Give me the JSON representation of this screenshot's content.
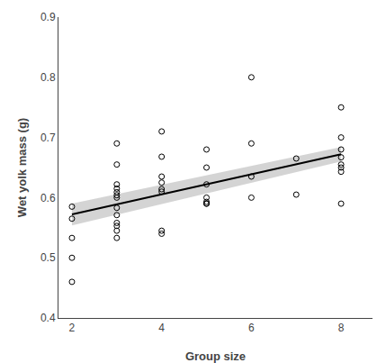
{
  "chart_data": {
    "type": "scatter",
    "xlabel": "Group size",
    "ylabel": "Wet yolk mass (g)",
    "xlim": [
      1.7,
      8.7
    ],
    "ylim": [
      0.4,
      0.9
    ],
    "xticks": [
      2,
      4,
      6,
      8
    ],
    "yticks": [
      0.4,
      0.5,
      0.6,
      0.7,
      0.8,
      0.9
    ],
    "grid": false,
    "series": [
      {
        "type": "band",
        "color": "#b0b0b0",
        "x": [
          2,
          8
        ],
        "lower": [
          0.554,
          0.66
        ],
        "upper": [
          0.59,
          0.684
        ]
      },
      {
        "type": "line",
        "color": "#000000",
        "x": [
          2,
          8
        ],
        "values": [
          0.572,
          0.672
        ]
      },
      {
        "type": "scatter",
        "color": "#000000",
        "marker": "circle-open",
        "x": [
          2,
          2,
          2,
          2,
          2,
          3,
          3,
          3,
          3,
          3,
          3,
          3,
          3,
          3,
          3,
          3,
          3,
          3,
          4,
          4,
          4,
          4,
          4,
          4,
          4,
          4,
          5,
          5,
          5,
          5,
          5,
          5,
          5,
          6,
          6,
          6,
          6,
          7,
          7,
          8,
          8,
          8,
          8,
          8,
          8,
          8,
          8
        ],
        "values": [
          0.585,
          0.565,
          0.533,
          0.5,
          0.46,
          0.69,
          0.655,
          0.622,
          0.615,
          0.609,
          0.604,
          0.6,
          0.583,
          0.571,
          0.558,
          0.553,
          0.545,
          0.533,
          0.71,
          0.668,
          0.635,
          0.625,
          0.614,
          0.61,
          0.545,
          0.54,
          0.68,
          0.65,
          0.622,
          0.6,
          0.593,
          0.59,
          0.59,
          0.8,
          0.69,
          0.635,
          0.6,
          0.665,
          0.605,
          0.75,
          0.7,
          0.68,
          0.667,
          0.655,
          0.65,
          0.643,
          0.59
        ]
      }
    ]
  }
}
